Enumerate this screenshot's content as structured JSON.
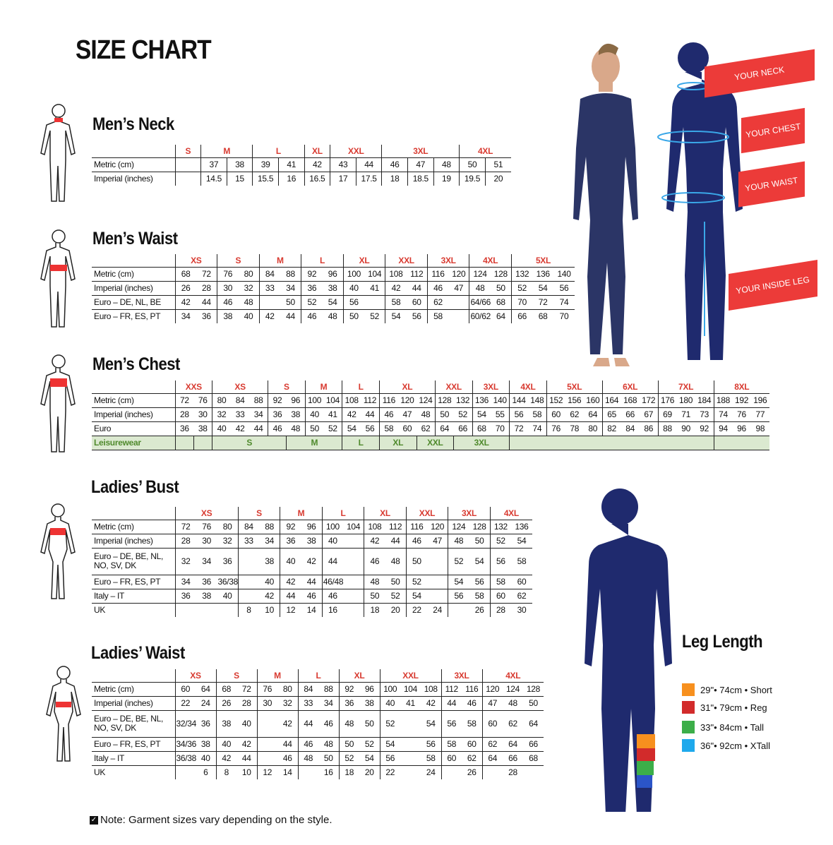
{
  "title": "SIZE CHART",
  "colors": {
    "size_label": "#d83a30",
    "navy": "#1e2a6b",
    "banner": "#ec3b39",
    "leisure_bg": "#dbe9d0",
    "leisure_text": "#4f8a2c"
  },
  "labels": {
    "neck": "YOUR NECK",
    "chest": "YOUR CHEST",
    "waist": "YOUR WAIST",
    "inside_leg": "YOUR INSIDE LEG"
  },
  "tables": [
    {
      "title": "Men’s Neck",
      "sizes": [
        [
          "S",
          1
        ],
        [
          "M",
          2
        ],
        [
          "L",
          2
        ],
        [
          "XL",
          1
        ],
        [
          "XXL",
          2
        ],
        [
          "3XL",
          3
        ],
        [
          "4XL",
          2
        ]
      ],
      "rows": [
        {
          "label": "Metric (cm)",
          "cells": [
            "",
            "37",
            "38",
            "39",
            "41",
            "42",
            "43",
            "44",
            "46",
            "47",
            "48",
            "50",
            "51"
          ]
        },
        {
          "label": "Imperial (inches)",
          "cells": [
            "",
            "14.5",
            "15",
            "15.5",
            "16",
            "16.5",
            "17",
            "17.5",
            "18",
            "18.5",
            "19",
            "19.5",
            "20"
          ]
        }
      ]
    },
    {
      "title": "Men’s Waist",
      "sizes": [
        [
          "XS",
          2
        ],
        [
          "S",
          2
        ],
        [
          "M",
          2
        ],
        [
          "L",
          2
        ],
        [
          "XL",
          2
        ],
        [
          "XXL",
          2
        ],
        [
          "3XL",
          2
        ],
        [
          "4XL",
          2
        ],
        [
          "5XL",
          3
        ]
      ],
      "rows": [
        {
          "label": "Metric (cm)",
          "cells": [
            "68",
            "72",
            "76",
            "80",
            "84",
            "88",
            "92",
            "96",
            "100",
            "104",
            "108",
            "112",
            "116",
            "120",
            "124",
            "128",
            "132",
            "136",
            "140"
          ]
        },
        {
          "label": "Imperial (inches)",
          "cells": [
            "26",
            "28",
            "30",
            "32",
            "33",
            "34",
            "36",
            "38",
            "40",
            "41",
            "42",
            "44",
            "46",
            "47",
            "48",
            "50",
            "52",
            "54",
            "56"
          ]
        },
        {
          "label": "Euro – DE, NL, BE",
          "cells": [
            "42",
            "44",
            "46",
            "48",
            "",
            "50",
            "52",
            "54",
            "56",
            "",
            "58",
            "60",
            "62",
            "",
            "64/66",
            "68",
            "70",
            "72",
            "74"
          ]
        },
        {
          "label": "Euro – FR, ES, PT",
          "cells": [
            "34",
            "36",
            "38",
            "40",
            "42",
            "44",
            "46",
            "48",
            "50",
            "52",
            "54",
            "56",
            "58",
            "",
            "60/62",
            "64",
            "66",
            "68",
            "70"
          ]
        }
      ]
    },
    {
      "title": "Men’s Chest",
      "sizes": [
        [
          "XXS",
          2
        ],
        [
          "XS",
          3
        ],
        [
          "S",
          2
        ],
        [
          "M",
          2
        ],
        [
          "L",
          2
        ],
        [
          "XL",
          3
        ],
        [
          "XXL",
          2
        ],
        [
          "3XL",
          2
        ],
        [
          "4XL",
          2
        ],
        [
          "5XL",
          3
        ],
        [
          "6XL",
          3
        ],
        [
          "7XL",
          3
        ],
        [
          "8XL",
          3
        ]
      ],
      "rows": [
        {
          "label": "Metric (cm)",
          "cells": [
            "72",
            "76",
            "80",
            "84",
            "88",
            "92",
            "96",
            "100",
            "104",
            "108",
            "112",
            "116",
            "120",
            "124",
            "128",
            "132",
            "136",
            "140",
            "144",
            "148",
            "152",
            "156",
            "160",
            "164",
            "168",
            "172",
            "176",
            "180",
            "184",
            "188",
            "192",
            "196"
          ]
        },
        {
          "label": "Imperial (inches)",
          "cells": [
            "28",
            "30",
            "32",
            "33",
            "34",
            "36",
            "38",
            "40",
            "41",
            "42",
            "44",
            "46",
            "47",
            "48",
            "50",
            "52",
            "54",
            "55",
            "56",
            "58",
            "60",
            "62",
            "64",
            "65",
            "66",
            "67",
            "69",
            "71",
            "73",
            "74",
            "76",
            "77"
          ]
        },
        {
          "label": "Euro",
          "cells": [
            "36",
            "38",
            "40",
            "42",
            "44",
            "46",
            "48",
            "50",
            "52",
            "54",
            "56",
            "58",
            "60",
            "62",
            "64",
            "66",
            "68",
            "70",
            "72",
            "74",
            "76",
            "78",
            "80",
            "82",
            "84",
            "86",
            "88",
            "90",
            "92",
            "94",
            "96",
            "98"
          ]
        }
      ],
      "leisurewear": {
        "label": "Leisurewear",
        "cells": [
          [
            "",
            1
          ],
          [
            "",
            1
          ],
          [
            "S",
            4
          ],
          [
            "M",
            3
          ],
          [
            "L",
            2
          ],
          [
            "XL",
            2
          ],
          [
            "XXL",
            2
          ],
          [
            "3XL",
            3
          ],
          [
            "",
            11
          ],
          [
            "",
            3
          ]
        ]
      }
    },
    {
      "title": "Ladies’ Bust",
      "sizes": [
        [
          "XS",
          3
        ],
        [
          "S",
          2
        ],
        [
          "M",
          2
        ],
        [
          "L",
          2
        ],
        [
          "XL",
          2
        ],
        [
          "XXL",
          2
        ],
        [
          "3XL",
          2
        ],
        [
          "4XL",
          2
        ]
      ],
      "rows": [
        {
          "label": "Metric (cm)",
          "cells": [
            "72",
            "76",
            "80",
            "84",
            "88",
            "92",
            "96",
            "100",
            "104",
            "108",
            "112",
            "116",
            "120",
            "124",
            "128",
            "132",
            "136"
          ]
        },
        {
          "label": "Imperial (inches)",
          "cells": [
            "28",
            "30",
            "32",
            "33",
            "34",
            "36",
            "38",
            "40",
            "",
            "42",
            "44",
            "46",
            "47",
            "48",
            "50",
            "52",
            "54"
          ]
        },
        {
          "label": "Euro –  DE, BE, NL, NO, SV, DK",
          "cells": [
            "32",
            "34",
            "36",
            "",
            "38",
            "40",
            "42",
            "44",
            "",
            "46",
            "48",
            "50",
            "",
            "52",
            "54",
            "56",
            "58"
          ]
        },
        {
          "label": "Euro – FR, ES, PT",
          "cells": [
            "34",
            "36",
            "36/38",
            "",
            "40",
            "42",
            "44",
            "46/48",
            "",
            "48",
            "50",
            "52",
            "",
            "54",
            "56",
            "58",
            "60"
          ]
        },
        {
          "label": "Italy – IT",
          "cells": [
            "36",
            "38",
            "40",
            "",
            "42",
            "44",
            "46",
            "46",
            "",
            "50",
            "52",
            "54",
            "",
            "56",
            "58",
            "60",
            "62"
          ]
        },
        {
          "label": "UK",
          "cells": [
            "",
            "",
            "",
            "8",
            "10",
            "12",
            "14",
            "16",
            "",
            "18",
            "20",
            "22",
            "24",
            "",
            "26",
            "28",
            "30"
          ]
        }
      ]
    },
    {
      "title": "Ladies’ Waist",
      "sizes": [
        [
          "XS",
          2
        ],
        [
          "S",
          2
        ],
        [
          "M",
          2
        ],
        [
          "L",
          2
        ],
        [
          "XL",
          2
        ],
        [
          "XXL",
          3
        ],
        [
          "3XL",
          2
        ],
        [
          "4XL",
          3
        ]
      ],
      "rows": [
        {
          "label": "Metric (cm)",
          "cells": [
            "60",
            "64",
            "68",
            "72",
            "76",
            "80",
            "84",
            "88",
            "92",
            "96",
            "100",
            "104",
            "108",
            "112",
            "116",
            "120",
            "124",
            "128"
          ]
        },
        {
          "label": "Imperial (inches)",
          "cells": [
            "22",
            "24",
            "26",
            "28",
            "30",
            "32",
            "33",
            "34",
            "36",
            "38",
            "40",
            "41",
            "42",
            "44",
            "46",
            "47",
            "48",
            "50"
          ]
        },
        {
          "label": "Euro – DE, BE, NL, NO, SV, DK",
          "cells": [
            "32/34",
            "36",
            "38",
            "40",
            "",
            "42",
            "44",
            "46",
            "48",
            "50",
            "52",
            "",
            "54",
            "56",
            "58",
            "60",
            "62",
            "64"
          ]
        },
        {
          "label": "Euro – FR, ES, PT",
          "cells": [
            "34/36",
            "38",
            "40",
            "42",
            "",
            "44",
            "46",
            "48",
            "50",
            "52",
            "54",
            "",
            "56",
            "58",
            "60",
            "62",
            "64",
            "66"
          ]
        },
        {
          "label": "Italy – IT",
          "cells": [
            "36/38",
            "40",
            "42",
            "44",
            "",
            "46",
            "48",
            "50",
            "52",
            "54",
            "56",
            "",
            "58",
            "60",
            "62",
            "64",
            "66",
            "68"
          ]
        },
        {
          "label": "UK",
          "cells": [
            "",
            "6",
            "8",
            "10",
            "12",
            "14",
            "",
            "16",
            "18",
            "20",
            "22",
            "",
            "24",
            "",
            "26",
            "",
            "28",
            ""
          ]
        }
      ]
    }
  ],
  "leg_length": {
    "title": "Leg Length",
    "items": [
      {
        "label": "29\"• 74cm • Short",
        "color": "#f7901e"
      },
      {
        "label": "31\"• 79cm • Reg",
        "color": "#d22b2b"
      },
      {
        "label": "33\"• 84cm • Tall",
        "color": "#3cae49"
      },
      {
        "label": "36\"• 92cm • XTall",
        "color": "#1ea9ec"
      }
    ]
  },
  "note": "Note: Garment sizes vary depending on the style."
}
